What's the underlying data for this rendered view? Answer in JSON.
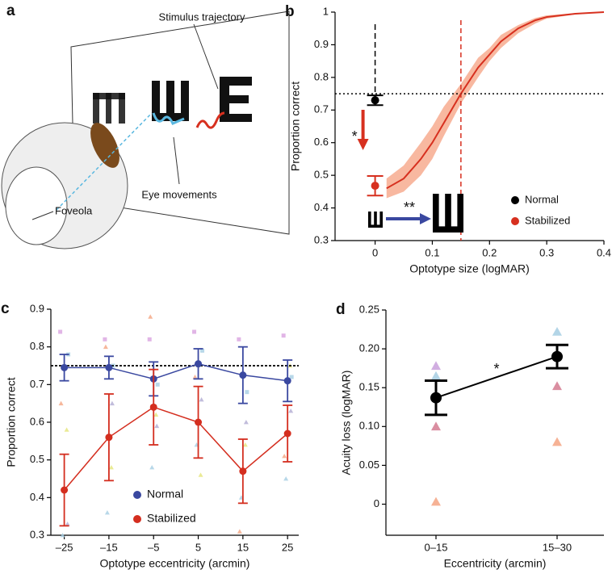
{
  "diagram": {
    "label": "a",
    "annotations": [
      "Stimulus trajectory",
      "Eye movements",
      "Foveola"
    ]
  },
  "chart_data": [
    {
      "type": "line",
      "label": "b",
      "xlabel": "Optotype size (logMAR)",
      "ylabel": "Proportion correct",
      "xlim": [
        -0.07,
        0.4
      ],
      "ylim": [
        0.3,
        1
      ],
      "xticks": [
        0,
        0.1,
        0.2,
        0.3,
        0.4
      ],
      "yticks": [
        0.3,
        0.4,
        0.5,
        0.6,
        0.7,
        0.8,
        0.9,
        1
      ],
      "x": [
        0.02,
        0.05,
        0.08,
        0.1,
        0.12,
        0.15,
        0.18,
        0.2,
        0.22,
        0.25,
        0.28,
        0.3,
        0.35,
        0.4
      ],
      "curve": {
        "color": "#d7301f",
        "band_color": "#f8b8a0",
        "values": [
          0.46,
          0.49,
          0.55,
          0.6,
          0.66,
          0.75,
          0.83,
          0.87,
          0.91,
          0.95,
          0.975,
          0.985,
          0.995,
          1.0
        ],
        "lower": [
          0.43,
          0.45,
          0.5,
          0.55,
          0.62,
          0.72,
          0.8,
          0.85,
          0.89,
          0.935,
          0.965,
          0.98,
          0.993,
          0.999
        ],
        "upper": [
          0.49,
          0.53,
          0.6,
          0.65,
          0.71,
          0.78,
          0.86,
          0.89,
          0.93,
          0.96,
          0.982,
          0.99,
          0.997,
          1.0
        ]
      },
      "series": [
        {
          "name": "Normal",
          "color": "#000000",
          "x": [
            0
          ],
          "values": [
            0.73
          ],
          "errors": [
            0.015
          ]
        },
        {
          "name": "Stabilized",
          "color": "#d7301f",
          "x": [
            0
          ],
          "values": [
            0.468
          ],
          "errors": [
            0.03
          ]
        }
      ],
      "reference_y": 0.75,
      "reference_x": 0,
      "threshold_x": 0.15,
      "annotations": [
        "*",
        "**"
      ],
      "legend": "lower right"
    },
    {
      "type": "errorbar",
      "label": "c",
      "xlabel": "Optotype eccentricity (arcmin)",
      "ylabel": "Proportion correct",
      "xlim": [
        -28,
        27.5
      ],
      "ylim": [
        0.3,
        0.9
      ],
      "xticks": [
        {
          "value": -25,
          "label": "–25"
        },
        {
          "value": -15,
          "label": "–15"
        },
        {
          "value": -5,
          "label": "–5"
        },
        5,
        15,
        25
      ],
      "yticks": [
        0.3,
        0.4,
        0.5,
        0.6,
        0.7,
        0.8,
        0.9
      ],
      "x": [
        -25,
        -15,
        -5,
        5,
        15,
        25
      ],
      "series": [
        {
          "name": "Normal",
          "color": "#3a48a0",
          "values": [
            0.745,
            0.745,
            0.715,
            0.755,
            0.725,
            0.71
          ],
          "errors": [
            0.035,
            0.03,
            0.045,
            0.04,
            0.075,
            0.055
          ]
        },
        {
          "name": "Stabilized",
          "color": "#d42e1f",
          "values": [
            0.42,
            0.56,
            0.64,
            0.6,
            0.47,
            0.57
          ],
          "errors": [
            0.095,
            0.115,
            0.1,
            0.095,
            0.085,
            0.075
          ]
        }
      ],
      "subjects": [
        {
          "marker": "triangle",
          "color": "#f4a582",
          "values": [
            0.65,
            0.8,
            0.88,
            0.72,
            0.31,
            0.51
          ]
        },
        {
          "marker": "triangle",
          "color": "#b2abd2",
          "values": [
            0.33,
            0.65,
            0.59,
            0.66,
            0.6,
            0.63
          ]
        },
        {
          "marker": "triangle",
          "color": "#a6cee3",
          "values": [
            0.3,
            0.36,
            0.48,
            0.54,
            0.4,
            0.45
          ]
        },
        {
          "marker": "triangle",
          "color": "#e5e57a",
          "values": [
            0.58,
            0.48,
            0.62,
            0.46,
            0.54,
            0.75
          ]
        },
        {
          "marker": "square",
          "color": "#d9a3e0",
          "values": [
            0.84,
            0.82,
            0.82,
            0.84,
            0.82,
            0.83
          ]
        },
        {
          "marker": "square",
          "color": "#a6cee3",
          "values": [
            0.78,
            0.75,
            0.7,
            0.79,
            0.68,
            0.72
          ]
        }
      ],
      "reference_y": 0.75,
      "legend": "lower center"
    },
    {
      "type": "dot",
      "label": "d",
      "xlabel": "Eccentricity (arcmin)",
      "ylabel": "Acuity loss (logMAR)",
      "ylim": [
        -0.04,
        0.25
      ],
      "yticks": [
        0,
        0.05,
        {
          "value": 0.1,
          "label": "0.10"
        },
        0.15,
        {
          "value": 0.2,
          "label": "0.20"
        },
        0.25
      ],
      "categories": [
        "0–15",
        "15–30"
      ],
      "series": [
        {
          "color": "#000000",
          "values": [
            0.137,
            0.19
          ],
          "errors": [
            0.022,
            0.015
          ]
        }
      ],
      "subjects": [
        {
          "marker": "triangle",
          "color": "#c9a0dc",
          "values": [
            0.178,
            null
          ]
        },
        {
          "marker": "triangle",
          "color": "#a6cee3",
          "values": [
            0.165,
            0.222
          ]
        },
        {
          "marker": "triangle",
          "color": "#d47a90",
          "values": [
            0.1,
            0.152
          ]
        },
        {
          "marker": "triangle",
          "color": "#f4a582",
          "values": [
            0.003,
            0.08
          ]
        }
      ],
      "annotations": [
        "*"
      ]
    }
  ]
}
